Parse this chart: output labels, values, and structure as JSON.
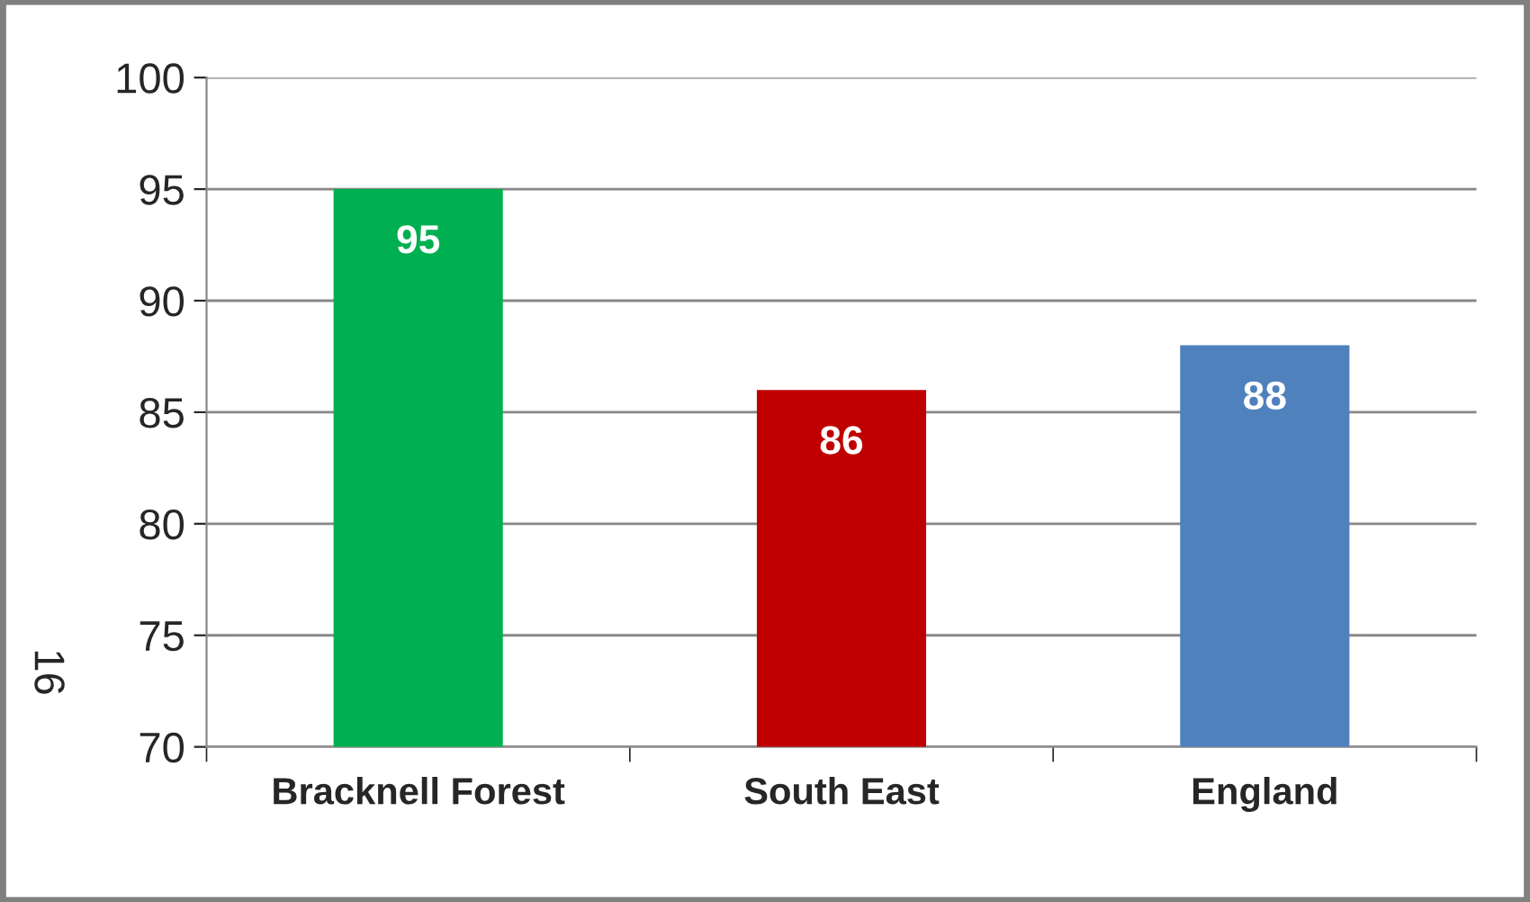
{
  "chart_data": {
    "type": "bar",
    "categories": [
      "Bracknell Forest",
      "South East",
      "England"
    ],
    "values": [
      95,
      86,
      88
    ],
    "colors": [
      "#00b050",
      "#c00000",
      "#4f81bd"
    ],
    "ylim": [
      70,
      100
    ],
    "yticks": [
      70,
      75,
      80,
      85,
      90,
      95,
      100
    ],
    "grid": "y",
    "data_labels": true,
    "annotations": [
      "16"
    ]
  }
}
